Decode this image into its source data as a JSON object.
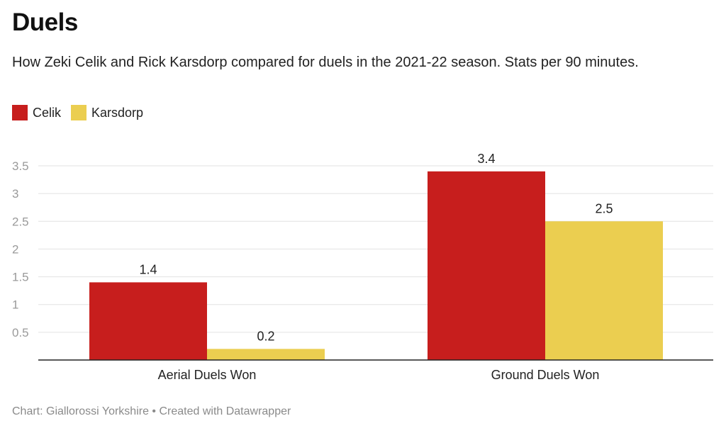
{
  "header": {
    "title": "Duels",
    "subtitle": "How Zeki Celik and Rick Karsdorp compared for duels in the 2021-22 season. Stats per 90 minutes."
  },
  "legend": {
    "items": [
      {
        "label": "Celik",
        "color": "#c71e1d"
      },
      {
        "label": "Karsdorp",
        "color": "#ebce50"
      }
    ]
  },
  "footer": {
    "text": "Chart: Giallorossi Yorkshire • Created with Datawrapper"
  },
  "chart_data": {
    "type": "bar",
    "categories": [
      "Aerial Duels Won",
      "Ground Duels Won"
    ],
    "series": [
      {
        "name": "Celik",
        "values": [
          1.4,
          3.4
        ],
        "color": "#c71e1d"
      },
      {
        "name": "Karsdorp",
        "values": [
          0.2,
          2.5
        ],
        "color": "#ebce50"
      }
    ],
    "yticks": [
      "0.5",
      "1",
      "1.5",
      "2",
      "2.5",
      "3",
      "3.5"
    ],
    "ylim": [
      0,
      3.5
    ],
    "grid": true,
    "legend_position": "top-left",
    "data_labels": true
  }
}
